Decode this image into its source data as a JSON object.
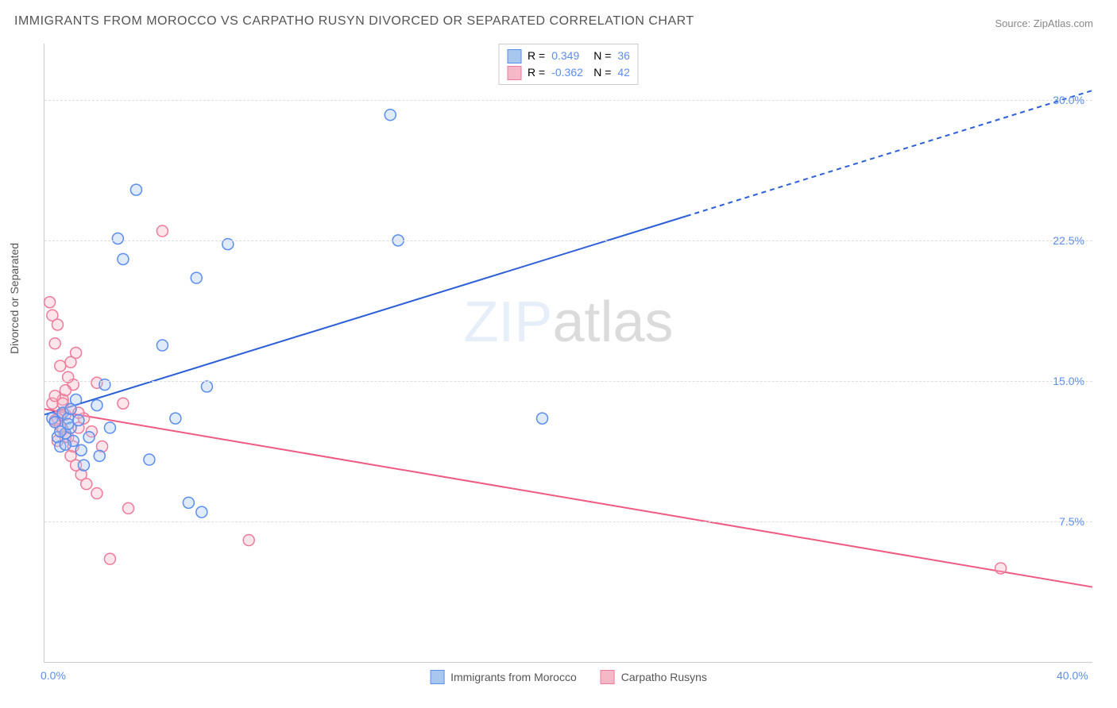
{
  "title": "IMMIGRANTS FROM MOROCCO VS CARPATHO RUSYN DIVORCED OR SEPARATED CORRELATION CHART",
  "source": "Source: ZipAtlas.com",
  "y_axis_title": "Divorced or Separated",
  "watermark_zip": "ZIP",
  "watermark_atlas": "atlas",
  "chart": {
    "type": "scatter",
    "xlim": [
      0,
      40
    ],
    "ylim": [
      0,
      33
    ],
    "x_ticks": [
      {
        "value": 0,
        "label": "0.0%"
      },
      {
        "value": 40,
        "label": "40.0%"
      }
    ],
    "y_ticks": [
      {
        "value": 7.5,
        "label": "7.5%"
      },
      {
        "value": 15,
        "label": "15.0%"
      },
      {
        "value": 22.5,
        "label": "22.5%"
      },
      {
        "value": 30,
        "label": "30.0%"
      }
    ],
    "background_color": "#ffffff",
    "grid_color": "#dddddd",
    "series": [
      {
        "name": "Immigrants from Morocco",
        "color_fill": "#a7c7ee",
        "color_stroke": "#5b8def",
        "marker_radius": 7,
        "R": "0.349",
        "N": "36",
        "regression": {
          "x1": 0,
          "y1": 13.2,
          "x2": 40,
          "y2": 30.5,
          "dash_after_x": 24.5,
          "color": "#2b5fd9",
          "width": 2
        },
        "points": [
          [
            0.3,
            13.0
          ],
          [
            0.5,
            12.0
          ],
          [
            0.6,
            11.5
          ],
          [
            0.7,
            13.3
          ],
          [
            0.8,
            12.2
          ],
          [
            0.9,
            13.0
          ],
          [
            1.0,
            12.5
          ],
          [
            1.1,
            11.8
          ],
          [
            1.2,
            14.0
          ],
          [
            1.5,
            10.5
          ],
          [
            2.0,
            13.7
          ],
          [
            2.1,
            11.0
          ],
          [
            2.3,
            14.8
          ],
          [
            2.8,
            22.6
          ],
          [
            3.0,
            21.5
          ],
          [
            3.5,
            25.2
          ],
          [
            4.0,
            10.8
          ],
          [
            4.5,
            16.9
          ],
          [
            5.0,
            13.0
          ],
          [
            5.5,
            8.5
          ],
          [
            5.8,
            20.5
          ],
          [
            6.0,
            8.0
          ],
          [
            6.2,
            14.7
          ],
          [
            7.0,
            22.3
          ],
          [
            13.2,
            29.2
          ],
          [
            13.5,
            22.5
          ],
          [
            19.0,
            13.0
          ],
          [
            0.4,
            12.8
          ],
          [
            0.6,
            12.3
          ],
          [
            0.8,
            11.6
          ],
          [
            1.0,
            13.5
          ],
          [
            1.3,
            12.9
          ],
          [
            1.4,
            11.3
          ],
          [
            1.7,
            12.0
          ],
          [
            2.5,
            12.5
          ],
          [
            0.9,
            12.7
          ]
        ]
      },
      {
        "name": "Carpatho Rusyns",
        "color_fill": "#f6b8c6",
        "color_stroke": "#ef7a9a",
        "marker_radius": 7,
        "R": "-0.362",
        "N": "42",
        "regression": {
          "x1": 0,
          "y1": 13.5,
          "x2": 40,
          "y2": 4.0,
          "dash_after_x": 40,
          "color": "#ef5a82",
          "width": 2
        },
        "points": [
          [
            0.2,
            19.2
          ],
          [
            0.3,
            18.5
          ],
          [
            0.4,
            17.0
          ],
          [
            0.5,
            18.0
          ],
          [
            0.6,
            15.8
          ],
          [
            0.7,
            14.0
          ],
          [
            0.8,
            13.2
          ],
          [
            0.9,
            12.0
          ],
          [
            1.0,
            13.5
          ],
          [
            1.0,
            11.0
          ],
          [
            1.1,
            14.8
          ],
          [
            1.2,
            16.5
          ],
          [
            1.3,
            12.5
          ],
          [
            1.4,
            10.0
          ],
          [
            1.5,
            13.0
          ],
          [
            1.6,
            9.5
          ],
          [
            1.8,
            12.3
          ],
          [
            2.0,
            14.9
          ],
          [
            2.0,
            9.0
          ],
          [
            2.2,
            11.5
          ],
          [
            2.5,
            5.5
          ],
          [
            3.0,
            13.8
          ],
          [
            3.2,
            8.2
          ],
          [
            4.5,
            23.0
          ],
          [
            7.8,
            6.5
          ],
          [
            36.5,
            5.0
          ],
          [
            0.3,
            13.8
          ],
          [
            0.4,
            12.9
          ],
          [
            0.5,
            11.8
          ],
          [
            0.6,
            13.2
          ],
          [
            0.7,
            12.4
          ],
          [
            0.8,
            14.5
          ],
          [
            0.9,
            15.2
          ],
          [
            1.0,
            16.0
          ],
          [
            1.1,
            11.5
          ],
          [
            1.2,
            10.5
          ],
          [
            0.4,
            14.2
          ],
          [
            0.5,
            13.0
          ],
          [
            0.6,
            12.6
          ],
          [
            0.7,
            13.8
          ],
          [
            0.8,
            12.0
          ],
          [
            1.3,
            13.3
          ]
        ]
      }
    ],
    "legend_top": {
      "r_label": "R =",
      "n_label": "N ="
    },
    "text_color_stat": "#5b8def"
  }
}
